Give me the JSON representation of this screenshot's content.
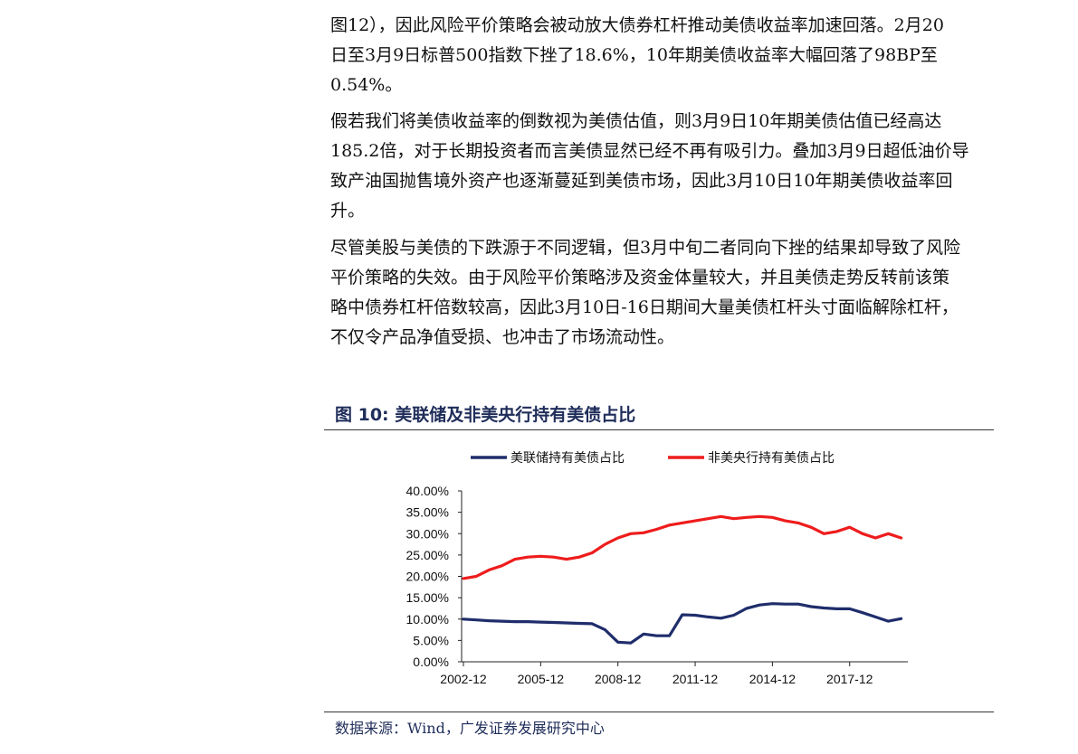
{
  "body_text": {
    "para1": [
      "图12），因此风险平价策略会被动放大债券杠杆推动美债收益率加速回落。2月20",
      "日至3月9日标普500指数下挫了18.6%，10年期美债收益率大幅回落了98BP至",
      "0.54%。"
    ],
    "para2": [
      "假若我们将美债收益率的倒数视为美债估值，则3月9日10年期美债估值已经高达",
      "185.2倍，对于长期投资者而言美债显然已经不再有吸引力。叠加3月9日超低油价导",
      "致产油国抛售境外资产也逐渐蔓延到美债市场，因此3月10日10年期美债收益率回",
      "升。"
    ],
    "para3": [
      "尽管美股与美债的下跌源于不同逻辑，但3月中旬二者同向下挫的结果却导致了风险",
      "平价策略的失效。由于风险平价策略涉及资金体量较大，并且美债走势反转前该策",
      "略中债券杠杆倍数较高，因此3月10日-16日期间大量美债杠杆头寸面临解除杠杆，",
      "不仅令产品净值受损、也冲击了市场流动性。"
    ]
  },
  "figure": {
    "title": "图 10:  美联储及非美央行持有美债占比",
    "source": "数据来源：Wind，广发证券发展研究中心"
  },
  "chart_data": {
    "type": "line",
    "title": "",
    "xlabel": "",
    "ylabel": "",
    "x_tick_labels": [
      "2002-12",
      "2005-12",
      "2008-12",
      "2011-12",
      "2014-12",
      "2017-12"
    ],
    "y_tick_labels": [
      "40.00%",
      "35.00%",
      "30.00%",
      "25.00%",
      "20.00%",
      "15.00%",
      "10.00%",
      "5.00%",
      "0.00%"
    ],
    "ylim": [
      0,
      40
    ],
    "legend_position": "top",
    "x": [
      "2002-12",
      "2003-06",
      "2003-12",
      "2004-06",
      "2004-12",
      "2005-06",
      "2005-12",
      "2006-06",
      "2006-12",
      "2007-06",
      "2007-12",
      "2008-06",
      "2008-12",
      "2009-06",
      "2009-12",
      "2010-06",
      "2010-12",
      "2011-06",
      "2011-12",
      "2012-06",
      "2012-12",
      "2013-06",
      "2013-12",
      "2014-06",
      "2014-12",
      "2015-06",
      "2015-12",
      "2016-06",
      "2016-12",
      "2017-06",
      "2017-12",
      "2018-06",
      "2018-12",
      "2019-06",
      "2019-12"
    ],
    "series": [
      {
        "name": "美联储持有美债占比",
        "color": "#1f2d6b",
        "values": [
          10.0,
          9.8,
          9.6,
          9.5,
          9.4,
          9.4,
          9.3,
          9.2,
          9.1,
          9.0,
          8.9,
          7.5,
          4.6,
          4.4,
          6.5,
          6.1,
          6.1,
          11.0,
          10.9,
          10.5,
          10.2,
          10.9,
          12.5,
          13.3,
          13.6,
          13.5,
          13.5,
          12.9,
          12.6,
          12.4,
          12.4,
          11.5,
          10.5,
          9.5,
          10.1
        ]
      },
      {
        "name": "非美央行持有美债占比",
        "color": "#ee1c1c",
        "values": [
          19.5,
          20.0,
          21.5,
          22.5,
          24.0,
          24.5,
          24.7,
          24.5,
          24.0,
          24.5,
          25.5,
          27.5,
          29.0,
          30.0,
          30.2,
          31.0,
          32.0,
          32.5,
          33.0,
          33.5,
          34.0,
          33.5,
          33.8,
          34.0,
          33.8,
          33.0,
          32.5,
          31.5,
          30.0,
          30.5,
          31.5,
          30.0,
          29.0,
          30.0,
          29.0
        ]
      }
    ]
  }
}
